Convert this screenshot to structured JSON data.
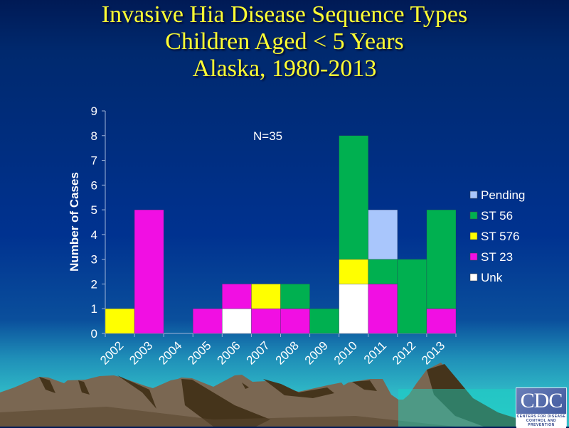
{
  "title": {
    "line1": "Invasive Hia Disease Sequence Types",
    "line2": "Children Aged < 5 Years",
    "line3": "Alaska, 1980-2013"
  },
  "annotation": "N=35",
  "logo": {
    "text": "CDC",
    "subtitle_line1": "CENTERS FOR DISEASE",
    "subtitle_line2": "CONTROL AND PREVENTION"
  },
  "colors": {
    "Pending": "#a9c6fc",
    "ST 56": "#00b050",
    "ST 576": "#ffff00",
    "ST 23": "#f10fe3",
    "Unk": "#ffffff"
  },
  "chart_data": {
    "type": "bar",
    "stacked": true,
    "title": "Invasive Hia Disease Sequence Types, Children Aged < 5 Years, Alaska, 1980-2013",
    "xlabel": "",
    "ylabel": "Number of Cases",
    "ylim": [
      0,
      9
    ],
    "yticks": [
      0,
      1,
      2,
      3,
      4,
      5,
      6,
      7,
      8,
      9
    ],
    "grid": false,
    "legend_position": "right",
    "legend": [
      "Pending",
      "ST 56",
      "ST 576",
      "ST 23",
      "Unk"
    ],
    "annotations": [
      "N=35"
    ],
    "categories": [
      "2002",
      "2003",
      "2004",
      "2005",
      "2006",
      "2007",
      "2008",
      "2009",
      "2010",
      "2011",
      "2012",
      "2013"
    ],
    "series": [
      {
        "name": "Unk",
        "values": [
          0,
          0,
          0,
          0,
          1,
          0,
          0,
          0,
          2,
          0,
          0,
          0
        ]
      },
      {
        "name": "ST 23",
        "values": [
          0,
          5,
          0,
          1,
          1,
          1,
          1,
          0,
          0,
          2,
          0,
          1
        ]
      },
      {
        "name": "ST 576",
        "values": [
          1,
          0,
          0,
          0,
          0,
          1,
          0,
          0,
          1,
          0,
          0,
          0
        ]
      },
      {
        "name": "ST 56",
        "values": [
          0,
          0,
          0,
          0,
          0,
          0,
          1,
          1,
          5,
          1,
          3,
          4
        ]
      },
      {
        "name": "Pending",
        "values": [
          0,
          0,
          0,
          0,
          0,
          0,
          0,
          0,
          0,
          2,
          0,
          0
        ]
      }
    ]
  }
}
